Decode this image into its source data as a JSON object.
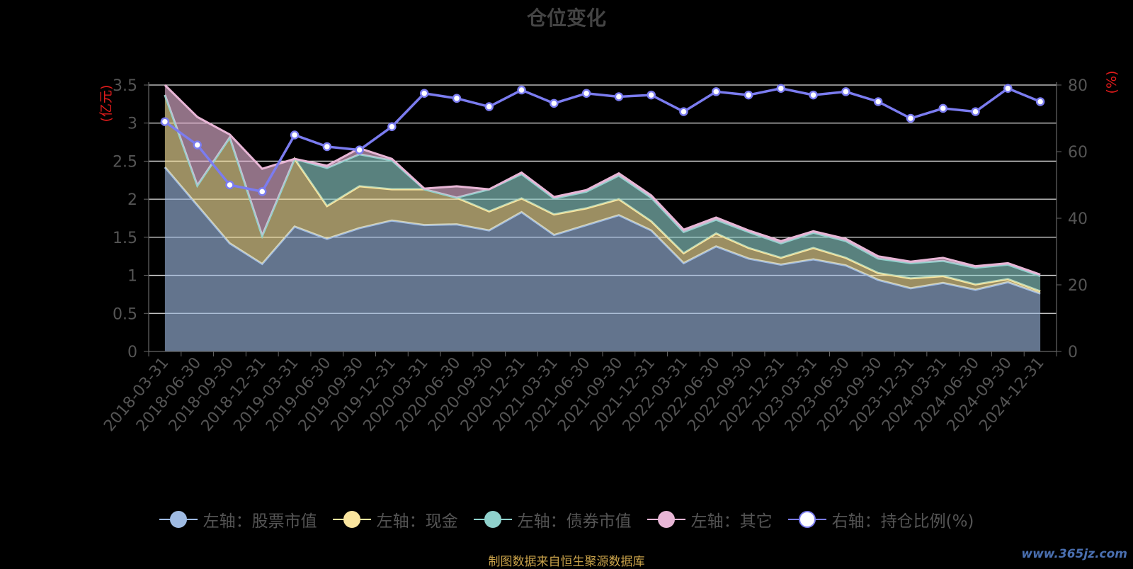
{
  "title": "仓位变化",
  "footer": "制图数据来自恒生聚源数据库",
  "watermark": "www.365jz.com",
  "legend": [
    {
      "label": "左轴：股票市值",
      "color": "#9fbbe3",
      "fill": "#9fbbe3"
    },
    {
      "label": "左轴：现金",
      "color": "#fae59e",
      "fill": "#fae59e"
    },
    {
      "label": "左轴：债券市值",
      "color": "#8fd1cc",
      "fill": "#8fd1cc"
    },
    {
      "label": "左轴：其它",
      "color": "#e8b6d6",
      "fill": "#e8b6d6"
    },
    {
      "label": "右轴：持仓比例(%)",
      "color": "#7b7cf0",
      "fill": "#ffffff"
    }
  ],
  "chart_data": {
    "type": "area",
    "title": "仓位变化",
    "ylabel_left": "(亿元)",
    "ylabel_right": "(%)",
    "ylim_left": [
      0,
      3.5
    ],
    "yticks_left": [
      "0",
      "0.5",
      "1",
      "1.5",
      "2",
      "2.5",
      "3",
      "3.5"
    ],
    "ylim_right": [
      0,
      80
    ],
    "yticks_right": [
      "0",
      "20",
      "40",
      "60",
      "80"
    ],
    "categories": [
      "2018-03-31",
      "2018-06-30",
      "2018-09-30",
      "2018-12-31",
      "2019-03-31",
      "2019-06-30",
      "2019-09-30",
      "2019-12-31",
      "2020-03-31",
      "2020-06-30",
      "2020-09-30",
      "2020-12-31",
      "2021-03-31",
      "2021-06-30",
      "2021-09-30",
      "2021-12-31",
      "2022-03-31",
      "2022-06-30",
      "2022-09-30",
      "2022-12-31",
      "2023-03-31",
      "2023-06-30",
      "2023-09-30",
      "2023-12-31",
      "2024-03-31",
      "2024-06-30",
      "2024-09-30",
      "2024-12-31"
    ],
    "series": [
      {
        "name": "左轴：股票市值",
        "axis": "left",
        "stack": true,
        "color": "#9fbbe3",
        "values": [
          2.42,
          1.92,
          1.42,
          1.15,
          1.64,
          1.48,
          1.62,
          1.72,
          1.66,
          1.67,
          1.59,
          1.83,
          1.53,
          1.66,
          1.79,
          1.59,
          1.16,
          1.38,
          1.22,
          1.14,
          1.21,
          1.13,
          0.94,
          0.83,
          0.9,
          0.81,
          0.91,
          0.76
        ]
      },
      {
        "name": "左轴：现金",
        "axis": "left",
        "stack": true,
        "color": "#fae59e",
        "values": [
          0.95,
          0.26,
          1.39,
          0.37,
          0.89,
          0.43,
          0.55,
          0.41,
          0.47,
          0.35,
          0.25,
          0.18,
          0.27,
          0.22,
          0.21,
          0.12,
          0.13,
          0.17,
          0.14,
          0.09,
          0.15,
          0.1,
          0.09,
          0.13,
          0.09,
          0.07,
          0.04,
          0.03
        ]
      },
      {
        "name": "左轴：债券市值",
        "axis": "left",
        "stack": true,
        "color": "#8fd1cc",
        "values": [
          0,
          0,
          0,
          0,
          0,
          0.5,
          0.42,
          0.38,
          0,
          0,
          0.29,
          0.32,
          0.21,
          0.22,
          0.31,
          0.31,
          0.28,
          0.18,
          0.21,
          0.19,
          0.2,
          0.22,
          0.19,
          0.2,
          0.2,
          0.22,
          0.19,
          0.2
        ]
      },
      {
        "name": "左轴：其它",
        "axis": "left",
        "stack": true,
        "color": "#e8b6d6",
        "values": [
          0.13,
          0.9,
          0.04,
          0.88,
          0.0,
          0.03,
          0.08,
          0.02,
          0.01,
          0.15,
          0.0,
          0.02,
          0.02,
          0.02,
          0.03,
          0.03,
          0.03,
          0.03,
          0.02,
          0.03,
          0.02,
          0.03,
          0.03,
          0.02,
          0.04,
          0.02,
          0.02,
          0.02
        ]
      },
      {
        "name": "右轴：持仓比例(%)",
        "axis": "right",
        "stack": false,
        "color": "#7b7cf0",
        "values": [
          69,
          62,
          50,
          48,
          65,
          61.5,
          60.5,
          67.5,
          77.5,
          76,
          73.5,
          78.5,
          74.5,
          77.5,
          76.5,
          77,
          72,
          78,
          77,
          79,
          77,
          78,
          75,
          70,
          73,
          72,
          79,
          75
        ]
      }
    ],
    "grid": true,
    "legend_position": "bottom"
  }
}
